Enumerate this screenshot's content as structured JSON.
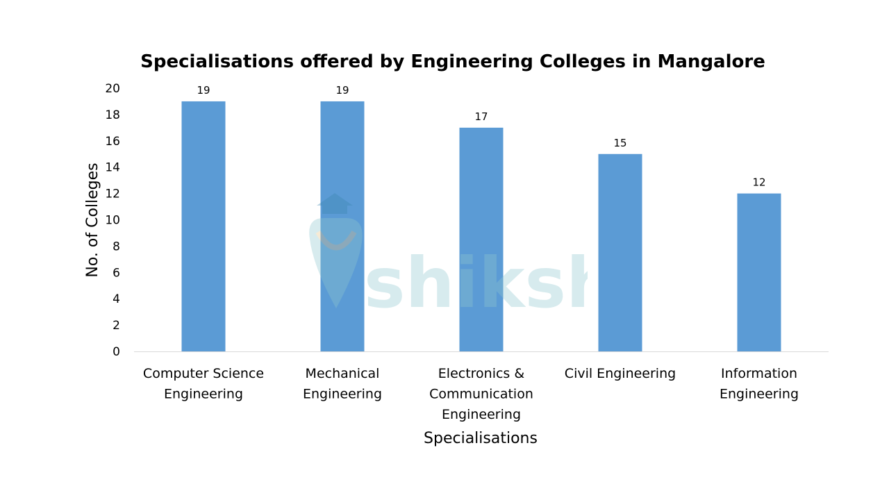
{
  "chart_data": {
    "type": "bar",
    "title": "Specialisations offered by Engineering Colleges in Mangalore",
    "xlabel": "Specialisations",
    "ylabel": "No. of Colleges",
    "categories": [
      [
        "Computer Science",
        "Engineering"
      ],
      [
        "Mechanical",
        "Engineering"
      ],
      [
        "Electronics &",
        "Communication",
        "Engineering"
      ],
      [
        "Civil Engineering"
      ],
      [
        "Information",
        "Engineering"
      ]
    ],
    "values": [
      19,
      19,
      17,
      15,
      12
    ],
    "ylim": [
      0,
      20
    ],
    "yticks": [
      0,
      2,
      4,
      6,
      8,
      10,
      12,
      14,
      16,
      18,
      20
    ],
    "grid": false,
    "legend": "none",
    "bar_color": "#5b9bd5"
  },
  "watermark": {
    "text": "shiksha",
    "color": "#8fc7cf"
  }
}
